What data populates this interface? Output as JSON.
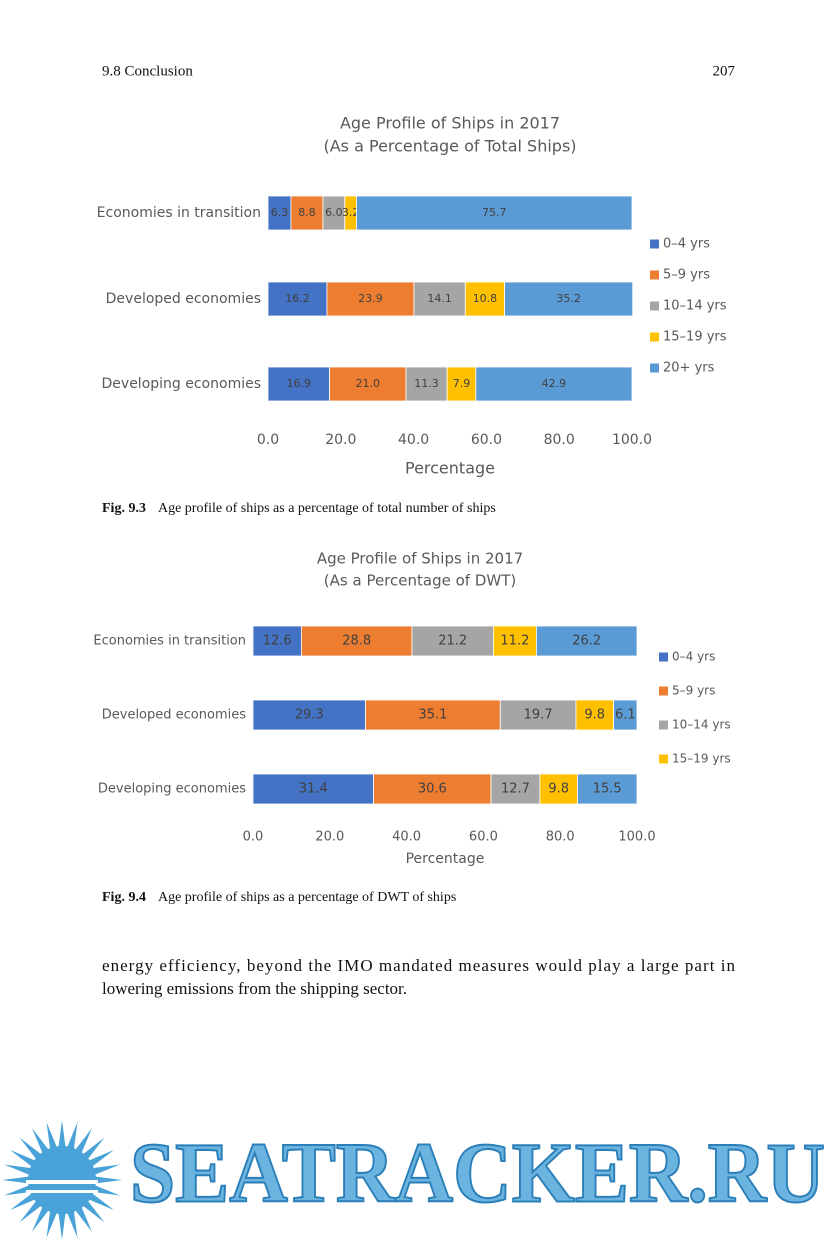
{
  "header": {
    "section": "9.8   Conclusion",
    "page": "207"
  },
  "chart_data": [
    {
      "type": "stacked-bar-horizontal",
      "title": "Age Profile of Ships in 2017",
      "subtitle": "(As a Percentage of Total Ships)",
      "categories": [
        "Economies in transition",
        "Developed economies",
        "Developing economies"
      ],
      "series": [
        {
          "name": "0–4 yrs",
          "color": "#4472c4",
          "values": [
            6.3,
            16.2,
            16.9
          ],
          "value_labels": [
            "6.3",
            "16.2",
            "16.9"
          ]
        },
        {
          "name": "5–9 yrs",
          "color": "#ed7d31",
          "values": [
            8.8,
            23.9,
            21
          ],
          "value_labels": [
            "8.8",
            "23.9",
            "21.0"
          ]
        },
        {
          "name": "10–14 yrs",
          "color": "#a5a5a5",
          "values": [
            6,
            14.1,
            11.3
          ],
          "value_labels": [
            "6.0",
            "14.1",
            "11.3"
          ]
        },
        {
          "name": "15–19 yrs",
          "color": "#ffc000",
          "values": [
            3.2,
            10.8,
            7.9
          ],
          "value_labels": [
            "3.2",
            "10.8",
            "7.9"
          ]
        },
        {
          "name": "20+ yrs",
          "color": "#5b9bd5",
          "values": [
            75.7,
            35.2,
            42.9
          ],
          "value_labels": [
            "75.7",
            "35.2",
            "42.9"
          ]
        }
      ],
      "xlim": [
        0,
        100
      ],
      "xticks": [
        {
          "value": 0,
          "label": "0.0"
        },
        {
          "value": 20,
          "label": "20.0"
        },
        {
          "value": 40,
          "label": "40.0"
        },
        {
          "value": 60,
          "label": "60.0"
        },
        {
          "value": 80,
          "label": "80.0"
        },
        {
          "value": 100,
          "label": "100.0"
        }
      ],
      "x_label": "Percentage",
      "legend": "right"
    },
    {
      "type": "stacked-bar-horizontal",
      "title": "Age Profile of Ships in 2017",
      "subtitle": "(As a Percentage of DWT)",
      "categories": [
        "Economies in transition",
        "Developed economies",
        "Developing economies"
      ],
      "series": [
        {
          "name": "0–4 yrs",
          "color": "#4472c4",
          "values": [
            12.6,
            29.3,
            31.4
          ],
          "value_labels": [
            "12.6",
            "29.3",
            "31.4"
          ]
        },
        {
          "name": "5–9 yrs",
          "color": "#ed7d31",
          "values": [
            28.8,
            35.1,
            30.6
          ],
          "value_labels": [
            "28.8",
            "35.1",
            "30.6"
          ]
        },
        {
          "name": "10–14 yrs",
          "color": "#a5a5a5",
          "values": [
            21.2,
            19.7,
            12.7
          ],
          "value_labels": [
            "21.2",
            "19.7",
            "12.7"
          ]
        },
        {
          "name": "15–19 yrs",
          "color": "#ffc000",
          "values": [
            11.2,
            9.8,
            9.8
          ],
          "value_labels": [
            "11.2",
            "9.8",
            "9.8"
          ]
        },
        {
          "color": "#5b9bd5",
          "values": [
            26.2,
            6.1,
            15.5
          ],
          "value_labels": [
            "26.2",
            "6.1",
            "15.5"
          ]
        }
      ],
      "xlim": [
        0,
        100
      ],
      "xticks": [
        {
          "value": 0,
          "label": "0.0"
        },
        {
          "value": 20,
          "label": "20.0"
        },
        {
          "value": 40,
          "label": "40.0"
        },
        {
          "value": 60,
          "label": "60.0"
        },
        {
          "value": 80,
          "label": "80.0"
        },
        {
          "value": 100,
          "label": "100.0"
        }
      ],
      "x_label": "Percentage",
      "legend": "right"
    }
  ],
  "captions": [
    {
      "label": "Fig. 9.3",
      "text": "Age profile of ships as a percentage of total number of ships"
    },
    {
      "label": "Fig. 9.4",
      "text": "Age profile of ships as a percentage of DWT of ships"
    }
  ],
  "body": {
    "lines": [
      "energy efficiency, beyond the IMO mandated measures would play a large part in",
      "lowering emissions from the shipping sector."
    ]
  },
  "watermark": "SEATRACKER.RU"
}
